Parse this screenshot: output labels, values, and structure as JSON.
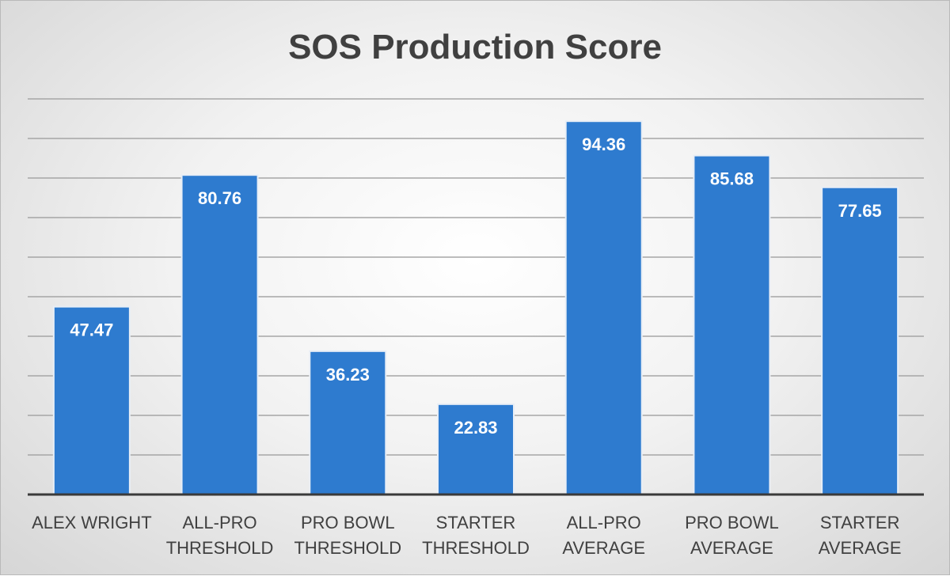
{
  "chart_data": {
    "type": "bar",
    "title": "SOS Production Score",
    "categories": [
      [
        "ALEX WRIGHT"
      ],
      [
        "ALL-PRO",
        "THRESHOLD"
      ],
      [
        "PRO BOWL",
        "THRESHOLD"
      ],
      [
        "STARTER",
        "THRESHOLD"
      ],
      [
        "ALL-PRO",
        "AVERAGE"
      ],
      [
        "PRO BOWL",
        "AVERAGE"
      ],
      [
        "STARTER",
        "AVERAGE"
      ]
    ],
    "values": [
      47.47,
      80.76,
      36.23,
      22.83,
      94.36,
      85.68,
      77.65
    ],
    "data_labels": [
      "47.47",
      "80.76",
      "36.23",
      "22.83",
      "94.36",
      "85.68",
      "77.65"
    ],
    "xlabel": "",
    "ylabel": "",
    "ylim": [
      0,
      100
    ],
    "grid_step": 10,
    "grid": true,
    "legend": "none",
    "colors": {
      "bar": "#2e7bcf",
      "bar_edge": "#e8eef6",
      "grid": "#a6a6a6",
      "axis": "#3a3a3a"
    }
  }
}
